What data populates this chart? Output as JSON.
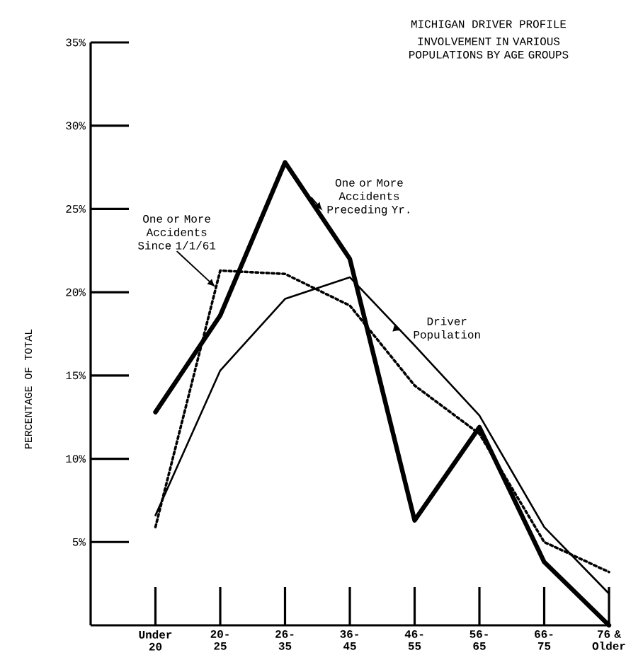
{
  "chart_data": {
    "type": "line",
    "title": "MICHIGAN DRIVER PROFILE",
    "subtitle": "INVOLVEMENT IN VARIOUS POPULATIONS BY AGE GROUPS",
    "ylabel": "PERCENTAGE OF TOTAL",
    "categories": [
      "Under 20",
      "20-25",
      "26-35",
      "36-45",
      "46-55",
      "56-65",
      "66-75",
      "76 & Older"
    ],
    "series": [
      {
        "name": "One or More Accidents Preceding Yr.",
        "color": "#000000",
        "line_style": "solid",
        "values": [
          12.8,
          18.6,
          27.8,
          22,
          6.3,
          11.9,
          3.8,
          0
        ]
      },
      {
        "name": "Driver Population",
        "color": "#000000",
        "line_style": "solid",
        "values": [
          6.6,
          15.3,
          19.6,
          20.9,
          16.8,
          12.6,
          5.9,
          1.9
        ]
      },
      {
        "name": "One or More Accidents Since 1/1/61",
        "color": "#000000",
        "line_style": "dotted",
        "values": [
          5.9,
          21.3,
          21.1,
          19.2,
          14.4,
          11.5,
          5.0,
          3.2
        ]
      }
    ],
    "ylim": [
      0,
      35
    ],
    "yticks": [
      {
        "value": 5,
        "label": "5%"
      },
      {
        "value": 10,
        "label": "10%"
      },
      {
        "value": 15,
        "label": "15%"
      },
      {
        "value": 20,
        "label": "20%"
      },
      {
        "value": 25,
        "label": "25%"
      },
      {
        "value": 30,
        "label": "30%"
      },
      {
        "value": 35,
        "label": "35%"
      }
    ],
    "marker": "none"
  }
}
